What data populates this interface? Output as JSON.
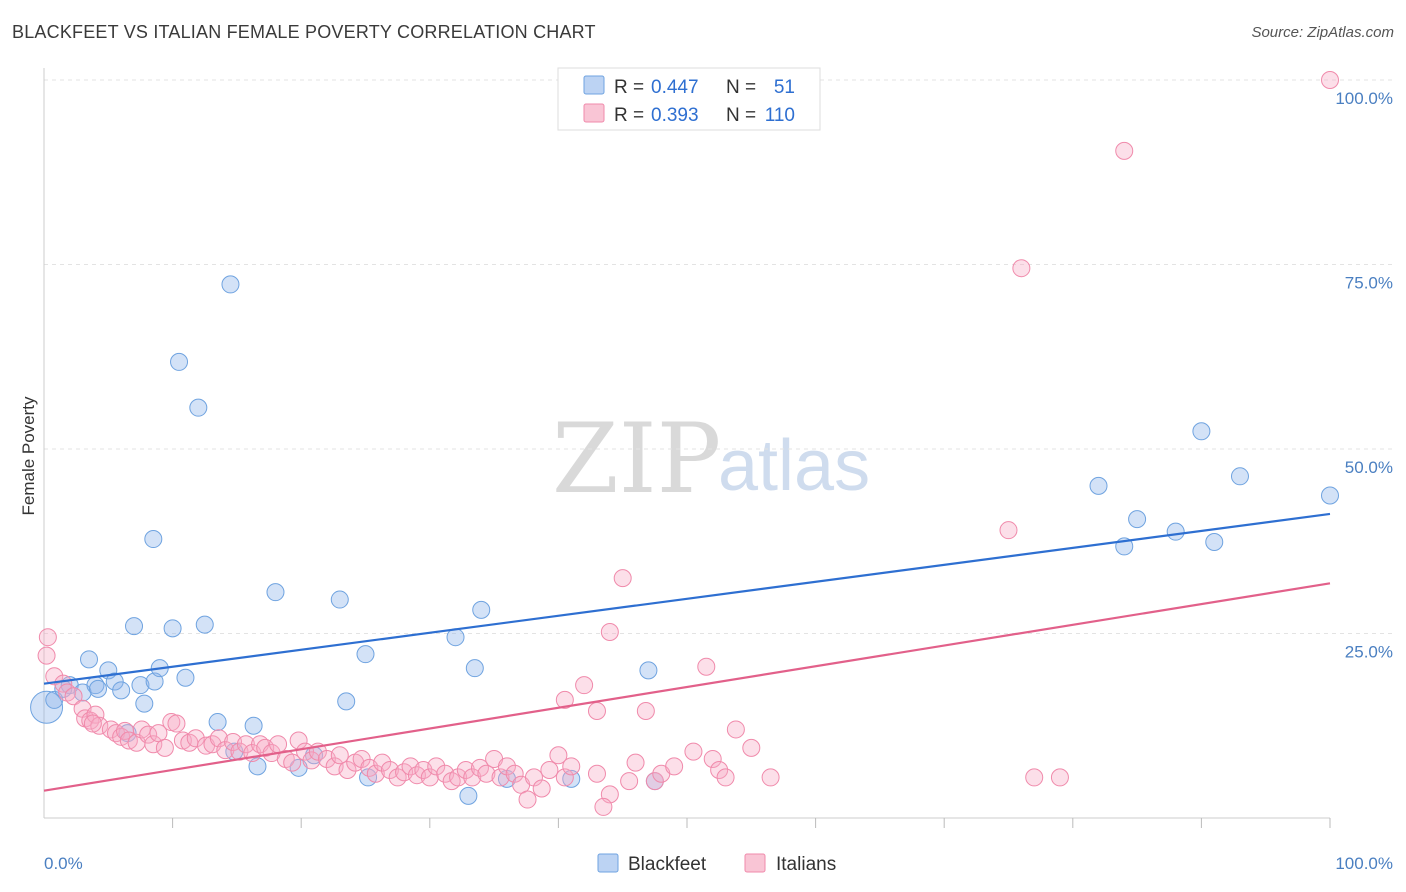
{
  "title": "BLACKFEET VS ITALIAN FEMALE POVERTY CORRELATION CHART",
  "source": "Source: ZipAtlas.com",
  "watermark": {
    "zip": "ZIP",
    "atlas": "atlas"
  },
  "legend_stats": [
    {
      "r_label": "R =",
      "r_value": "0.447",
      "n_label": "N =",
      "n_value": "51"
    },
    {
      "r_label": "R =",
      "r_value": "0.393",
      "n_label": "N =",
      "n_value": "110"
    }
  ],
  "bottom_legend": [
    "Blackfeet",
    "Italians"
  ],
  "chart_data": {
    "type": "scatter",
    "title": "BLACKFEET VS ITALIAN FEMALE POVERTY CORRELATION CHART",
    "xlabel": "",
    "ylabel": "Female Poverty",
    "xlim": [
      0,
      100
    ],
    "ylim": [
      0,
      100
    ],
    "x_tick_labels": [
      "0.0%",
      "100.0%"
    ],
    "y_tick_labels": [
      "25.0%",
      "50.0%",
      "75.0%",
      "100.0%"
    ],
    "y_ticks": [
      25,
      50,
      75,
      100
    ],
    "grid": "horizontal dashed",
    "legend_placement": "top-center and bottom-center",
    "colors": {
      "Blackfeet": "#6fa3e0",
      "Italians": "#f4a6bf",
      "Blackfeet_line": "#2e6fd1",
      "Italians_line": "#e2608a"
    },
    "series": [
      {
        "name": "Blackfeet",
        "r": 0.447,
        "n": 51,
        "trend": [
          [
            0,
            18.2
          ],
          [
            100,
            41.2
          ]
        ],
        "points": [
          [
            0.2,
            15.0
          ],
          [
            0.8,
            16.0
          ],
          [
            1.5,
            17.5
          ],
          [
            2.0,
            18.0
          ],
          [
            3.0,
            17.0
          ],
          [
            3.5,
            21.5
          ],
          [
            4.0,
            18.0
          ],
          [
            4.2,
            17.5
          ],
          [
            5.0,
            20.0
          ],
          [
            5.5,
            18.5
          ],
          [
            6.0,
            17.3
          ],
          [
            6.5,
            11.5
          ],
          [
            7.0,
            26.0
          ],
          [
            7.5,
            18.0
          ],
          [
            7.8,
            15.5
          ],
          [
            8.5,
            37.8
          ],
          [
            8.6,
            18.5
          ],
          [
            9.0,
            20.3
          ],
          [
            10.0,
            25.7
          ],
          [
            10.5,
            61.8
          ],
          [
            11.0,
            19.0
          ],
          [
            12.0,
            55.6
          ],
          [
            12.5,
            26.2
          ],
          [
            13.5,
            13.0
          ],
          [
            14.5,
            72.3
          ],
          [
            14.8,
            9.0
          ],
          [
            16.3,
            12.5
          ],
          [
            16.6,
            7.0
          ],
          [
            18.0,
            30.6
          ],
          [
            19.8,
            6.8
          ],
          [
            21.0,
            8.5
          ],
          [
            23.0,
            29.6
          ],
          [
            23.5,
            15.8
          ],
          [
            25.0,
            22.2
          ],
          [
            25.2,
            5.5
          ],
          [
            32.0,
            24.5
          ],
          [
            33.0,
            3.0
          ],
          [
            33.5,
            20.3
          ],
          [
            34.0,
            28.2
          ],
          [
            36.0,
            5.3
          ],
          [
            41.0,
            5.3
          ],
          [
            47.0,
            20.0
          ],
          [
            47.5,
            5.0
          ],
          [
            82.0,
            45.0
          ],
          [
            84.0,
            36.8
          ],
          [
            85.0,
            40.5
          ],
          [
            88.0,
            38.8
          ],
          [
            90.0,
            52.4
          ],
          [
            91.0,
            37.4
          ],
          [
            93.0,
            46.3
          ],
          [
            100.0,
            43.7
          ]
        ]
      },
      {
        "name": "Italians",
        "r": 0.393,
        "n": 110,
        "trend": [
          [
            0,
            3.7
          ],
          [
            100,
            31.8
          ]
        ],
        "points": [
          [
            0.3,
            24.5
          ],
          [
            0.8,
            19.2
          ],
          [
            1.5,
            18.2
          ],
          [
            1.8,
            17.0
          ],
          [
            2.3,
            16.5
          ],
          [
            3.0,
            14.8
          ],
          [
            3.2,
            13.5
          ],
          [
            3.6,
            13.2
          ],
          [
            4.0,
            14.0
          ],
          [
            4.3,
            12.5
          ],
          [
            5.2,
            12.0
          ],
          [
            5.6,
            11.5
          ],
          [
            6.0,
            11.0
          ],
          [
            6.3,
            11.8
          ],
          [
            6.6,
            10.5
          ],
          [
            7.2,
            10.2
          ],
          [
            7.6,
            12.0
          ],
          [
            8.1,
            11.3
          ],
          [
            8.5,
            10.0
          ],
          [
            8.9,
            11.5
          ],
          [
            9.4,
            9.5
          ],
          [
            9.9,
            13.0
          ],
          [
            10.3,
            12.8
          ],
          [
            10.8,
            10.5
          ],
          [
            11.3,
            10.2
          ],
          [
            11.8,
            10.8
          ],
          [
            12.6,
            9.8
          ],
          [
            13.1,
            10.0
          ],
          [
            13.6,
            10.8
          ],
          [
            14.1,
            9.2
          ],
          [
            14.7,
            10.3
          ],
          [
            15.2,
            9.0
          ],
          [
            15.7,
            10.0
          ],
          [
            16.2,
            8.8
          ],
          [
            16.8,
            10.0
          ],
          [
            17.2,
            9.5
          ],
          [
            17.7,
            8.8
          ],
          [
            18.2,
            10.0
          ],
          [
            18.8,
            8.0
          ],
          [
            19.3,
            7.5
          ],
          [
            19.8,
            10.5
          ],
          [
            20.3,
            9.0
          ],
          [
            20.8,
            7.8
          ],
          [
            21.3,
            9.0
          ],
          [
            22.0,
            8.0
          ],
          [
            22.6,
            7.0
          ],
          [
            23.0,
            8.5
          ],
          [
            23.6,
            6.5
          ],
          [
            24.2,
            7.5
          ],
          [
            24.7,
            8.0
          ],
          [
            25.3,
            6.8
          ],
          [
            25.8,
            6.0
          ],
          [
            26.3,
            7.5
          ],
          [
            26.9,
            6.5
          ],
          [
            27.5,
            5.5
          ],
          [
            28.0,
            6.2
          ],
          [
            28.5,
            7.0
          ],
          [
            29.0,
            5.8
          ],
          [
            29.5,
            6.5
          ],
          [
            30.0,
            5.5
          ],
          [
            30.5,
            7.0
          ],
          [
            31.2,
            6.0
          ],
          [
            31.7,
            5.0
          ],
          [
            32.2,
            5.5
          ],
          [
            32.8,
            6.5
          ],
          [
            33.3,
            5.5
          ],
          [
            33.9,
            6.8
          ],
          [
            34.4,
            6.0
          ],
          [
            35.0,
            8.0
          ],
          [
            35.5,
            5.5
          ],
          [
            36.0,
            7.0
          ],
          [
            36.6,
            6.0
          ],
          [
            37.1,
            4.5
          ],
          [
            37.6,
            2.5
          ],
          [
            38.1,
            5.5
          ],
          [
            38.7,
            4.0
          ],
          [
            39.3,
            6.5
          ],
          [
            40.0,
            8.5
          ],
          [
            40.5,
            5.5
          ],
          [
            41.0,
            7.0
          ],
          [
            42.0,
            18.0
          ],
          [
            43.0,
            6.0
          ],
          [
            44.0,
            3.2
          ],
          [
            45.0,
            32.5
          ],
          [
            45.5,
            5.0
          ],
          [
            46.0,
            7.5
          ],
          [
            46.8,
            14.5
          ],
          [
            47.5,
            5.0
          ],
          [
            48.0,
            6.0
          ],
          [
            49.0,
            7.0
          ],
          [
            50.5,
            9.0
          ],
          [
            51.5,
            20.5
          ],
          [
            52.0,
            8.0
          ],
          [
            52.5,
            6.5
          ],
          [
            53.0,
            5.5
          ],
          [
            53.8,
            12.0
          ],
          [
            55.0,
            9.5
          ],
          [
            56.5,
            5.5
          ],
          [
            76.0,
            74.5
          ],
          [
            75.0,
            39.0
          ],
          [
            77.0,
            5.5
          ],
          [
            79.0,
            5.5
          ],
          [
            84.0,
            90.4
          ],
          [
            100.0,
            100.0
          ],
          [
            44.0,
            25.2
          ],
          [
            40.5,
            16.0
          ],
          [
            43.5,
            1.5
          ],
          [
            43.0,
            14.5
          ],
          [
            0.2,
            22.0
          ],
          [
            3.8,
            12.8
          ]
        ]
      }
    ]
  }
}
